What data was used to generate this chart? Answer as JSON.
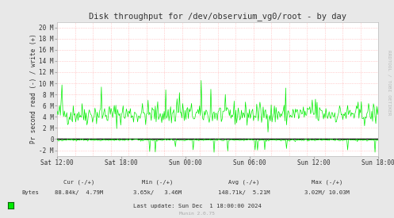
{
  "title": "Disk throughput for /dev/observium_vg0/root - by day",
  "ylabel": "Pr second read (-) / write (+)",
  "bg_color": "#e8e8e8",
  "plot_bg_color": "#ffffff",
  "grid_color": "#ffaaaa",
  "zero_line_color": "#000000",
  "line_color": "#00ee00",
  "ylim": [
    -3000000,
    21000000
  ],
  "yticks": [
    -2000000,
    0,
    2000000,
    4000000,
    6000000,
    8000000,
    10000000,
    12000000,
    14000000,
    16000000,
    18000000,
    20000000
  ],
  "ytick_labels": [
    "-2 M",
    "0",
    "2 M",
    "4 M",
    "6 M",
    "8 M",
    "10 M",
    "12 M",
    "14 M",
    "16 M",
    "18 M",
    "20 M"
  ],
  "xtick_labels": [
    "Sat 12:00",
    "Sat 18:00",
    "Sun 00:00",
    "Sun 06:00",
    "Sun 12:00",
    "Sun 18:00"
  ],
  "watermark": "RRDTOOL / TOBI OETIKER",
  "footer_munin": "Munin 2.0.75",
  "num_points": 400,
  "seed": 42
}
